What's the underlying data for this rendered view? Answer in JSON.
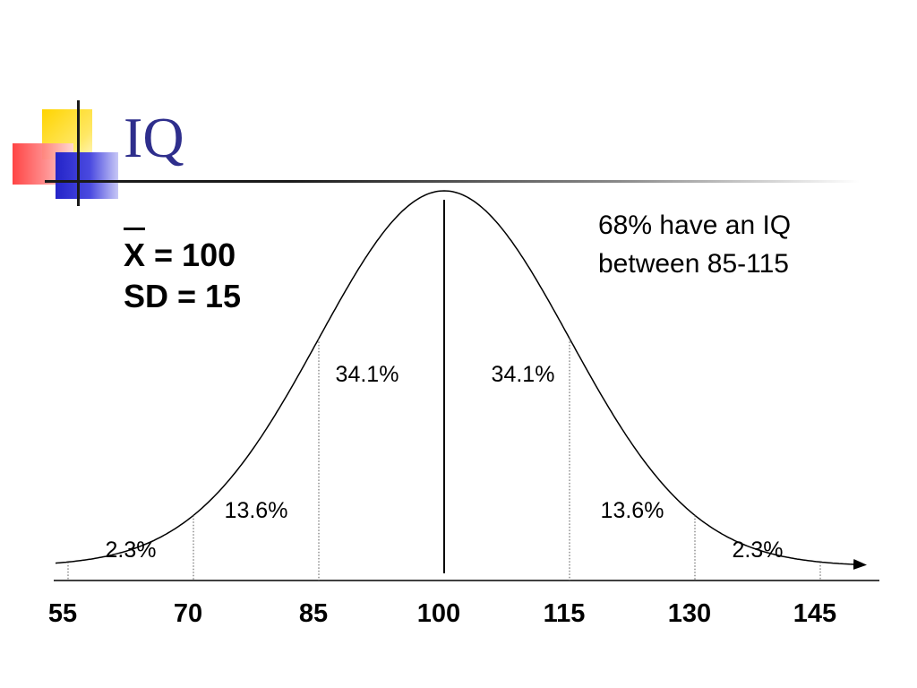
{
  "slide": {
    "title": "IQ",
    "mean_symbol": "X",
    "mean_value": "= 100",
    "sd_line": "SD = 15",
    "note_line1": "68% have an IQ",
    "note_line2": "between 85-115"
  },
  "diagram": {
    "axis_ticks": [
      "55",
      "70",
      "85",
      "100",
      "115",
      "130",
      "145"
    ],
    "regions": [
      {
        "label": "2.3%"
      },
      {
        "label": "13.6%"
      },
      {
        "label": "34.1%"
      },
      {
        "label": "34.1%"
      },
      {
        "label": "13.6%"
      },
      {
        "label": "2.3%"
      }
    ],
    "mean": 100,
    "sd": 15
  },
  "colors": {
    "title": "#2e2e8c",
    "deco_yellow": "#ffd400",
    "deco_red": "#ff3b3b",
    "deco_blue": "#2424c8"
  }
}
